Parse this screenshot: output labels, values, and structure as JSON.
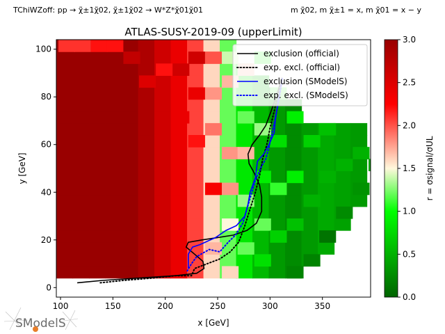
{
  "header": {
    "process_text": "TChiWZoff: pp → χ̃±1χ̃02, χ̃±1χ̃02 → W*Z*χ̃01χ̃01",
    "mass_text": "m χ̃02, m χ̃±1 = x, m χ̃01 = x − y"
  },
  "chart_data": {
    "type": "heatmap",
    "title": "ATLAS-SUSY-2019-09 (upperLimit)",
    "xlabel": "x [GeV]",
    "ylabel": "y [GeV]",
    "xlim": [
      96,
      396
    ],
    "ylim": [
      -4,
      104
    ],
    "xticks": [
      100,
      150,
      200,
      250,
      300,
      350
    ],
    "yticks": [
      0,
      20,
      40,
      60,
      80,
      100
    ],
    "colorbar": {
      "label": "r = σsignal/σUL",
      "range": [
        0.0,
        3.0
      ],
      "ticks": [
        0.0,
        0.5,
        1.0,
        1.5,
        2.0,
        2.5,
        3.0
      ],
      "colors": [
        "#006400",
        "#00ff00",
        "#ffffff",
        "#ff0000",
        "#990000"
      ]
    },
    "grid": {
      "x_min": 96,
      "x_step": 15.6,
      "x_count": 19,
      "y_min": 4,
      "y_step": 5,
      "y_count": 20,
      "columns": [
        {
          "fill": 3.0,
          "min_y": 4,
          "max_y": 104
        },
        {
          "fill": 3.0,
          "min_y": 4,
          "max_y": 104
        },
        {
          "fill": 3.0,
          "min_y": 4,
          "max_y": 104
        },
        {
          "fill": 3.0,
          "min_y": 4,
          "max_y": 104
        },
        {
          "fill": 3.0,
          "min_y": 4,
          "max_y": 104
        },
        {
          "fill": 2.85,
          "min_y": 4,
          "max_y": 104
        },
        {
          "fill": 2.6,
          "min_y": 4,
          "max_y": 104
        },
        {
          "fill": 2.4,
          "min_y": 4,
          "max_y": 104
        },
        {
          "fill": 2.05,
          "min_y": 4,
          "max_y": 104
        },
        {
          "fill": 1.6,
          "min_y": 4,
          "max_y": 104
        },
        {
          "fill": 1.2,
          "min_y": 4,
          "max_y": 104
        },
        {
          "fill": 0.85,
          "min_y": 4,
          "max_y": 94
        },
        {
          "fill": 0.55,
          "min_y": 4,
          "max_y": 89
        },
        {
          "fill": 0.35,
          "min_y": 4,
          "max_y": 84
        },
        {
          "fill": 0.25,
          "min_y": 4,
          "max_y": 79
        },
        {
          "fill": 0.35,
          "min_y": 9,
          "max_y": 69
        },
        {
          "fill": 0.45,
          "min_y": 14,
          "max_y": 69
        },
        {
          "fill": 0.4,
          "min_y": 24,
          "max_y": 69
        },
        {
          "fill": 0.35,
          "min_y": 34,
          "max_y": 69
        }
      ],
      "cells": [
        {
          "x": 98,
          "y": 104,
          "r": 2.1
        },
        {
          "x": 113,
          "y": 104,
          "r": 2.1
        },
        {
          "x": 129,
          "y": 104,
          "r": 2.2
        },
        {
          "x": 144,
          "y": 104,
          "r": 2.2
        },
        {
          "x": 160,
          "y": 99,
          "r": 2.7
        },
        {
          "x": 175,
          "y": 89,
          "r": 2.5
        },
        {
          "x": 191,
          "y": 94,
          "r": 2.2
        },
        {
          "x": 207,
          "y": 94,
          "r": 2.6
        },
        {
          "x": 207,
          "y": 74,
          "r": 2.4
        },
        {
          "x": 222,
          "y": 99,
          "r": 2.6
        },
        {
          "x": 222,
          "y": 84,
          "r": 2.4
        },
        {
          "x": 222,
          "y": 64,
          "r": 2.2
        },
        {
          "x": 238,
          "y": 99,
          "r": 2.0
        },
        {
          "x": 238,
          "y": 84,
          "r": 1.8
        },
        {
          "x": 238,
          "y": 69,
          "r": 1.9
        },
        {
          "x": 238,
          "y": 44,
          "r": 2.3
        },
        {
          "x": 238,
          "y": 19,
          "r": 1.7
        },
        {
          "x": 254,
          "y": 99,
          "r": 1.4
        },
        {
          "x": 254,
          "y": 89,
          "r": 1.7
        },
        {
          "x": 254,
          "y": 59,
          "r": 1.8
        },
        {
          "x": 254,
          "y": 44,
          "r": 1.8
        },
        {
          "x": 254,
          "y": 29,
          "r": 1.5
        },
        {
          "x": 254,
          "y": 9,
          "r": 1.6
        },
        {
          "x": 269,
          "y": 94,
          "r": 1.7
        },
        {
          "x": 269,
          "y": 74,
          "r": 1.2
        },
        {
          "x": 269,
          "y": 59,
          "r": 1.7
        },
        {
          "x": 269,
          "y": 39,
          "r": 1.3
        },
        {
          "x": 269,
          "y": 19,
          "r": 1.2
        },
        {
          "x": 285,
          "y": 99,
          "r": 1.1
        },
        {
          "x": 285,
          "y": 69,
          "r": 1.3
        },
        {
          "x": 285,
          "y": 49,
          "r": 0.9
        },
        {
          "x": 285,
          "y": 29,
          "r": 1.2
        },
        {
          "x": 285,
          "y": 14,
          "r": 0.8
        },
        {
          "x": 300,
          "y": 84,
          "r": 1.2
        },
        {
          "x": 300,
          "y": 64,
          "r": 0.8
        },
        {
          "x": 300,
          "y": 44,
          "r": 1.1
        },
        {
          "x": 300,
          "y": 24,
          "r": 0.7
        },
        {
          "x": 316,
          "y": 74,
          "r": 0.9
        },
        {
          "x": 316,
          "y": 49,
          "r": 0.9
        },
        {
          "x": 316,
          "y": 29,
          "r": 0.6
        },
        {
          "x": 316,
          "y": 9,
          "r": 0.2
        },
        {
          "x": 332,
          "y": 64,
          "r": 0.7
        },
        {
          "x": 332,
          "y": 39,
          "r": 0.5
        },
        {
          "x": 332,
          "y": 14,
          "r": 0.2
        },
        {
          "x": 347,
          "y": 69,
          "r": 0.6
        },
        {
          "x": 347,
          "y": 49,
          "r": 0.5
        },
        {
          "x": 347,
          "y": 24,
          "r": 0.1
        },
        {
          "x": 363,
          "y": 54,
          "r": 0.5
        },
        {
          "x": 363,
          "y": 34,
          "r": 0.25
        },
        {
          "x": 379,
          "y": 59,
          "r": 0.5
        },
        {
          "x": 379,
          "y": 44,
          "r": 0.3
        },
        {
          "x": 394,
          "y": 54,
          "r": 0.45
        }
      ]
    },
    "series": [
      {
        "name": "exclusion (official)",
        "color": "#000000",
        "dash": "solid",
        "points": [
          [
            116,
            2
          ],
          [
            140,
            3
          ],
          [
            175,
            4
          ],
          [
            210,
            5
          ],
          [
            230,
            6
          ],
          [
            237,
            8
          ],
          [
            236,
            11
          ],
          [
            228,
            14
          ],
          [
            220,
            17
          ],
          [
            222,
            19
          ],
          [
            235,
            20
          ],
          [
            250,
            21
          ],
          [
            265,
            22
          ],
          [
            278,
            24
          ],
          [
            287,
            27
          ],
          [
            292,
            32
          ],
          [
            292,
            38
          ],
          [
            290,
            43
          ],
          [
            285,
            48
          ],
          [
            280,
            52
          ],
          [
            279,
            56
          ],
          [
            283,
            60
          ],
          [
            290,
            64
          ],
          [
            296,
            68
          ],
          [
            301,
            74
          ],
          [
            305,
            79
          ],
          [
            308,
            83
          ],
          [
            311,
            88
          ]
        ]
      },
      {
        "name": "exp. excl. (official)",
        "color": "#000000",
        "dash": "dotted",
        "points": [
          [
            138,
            2
          ],
          [
            160,
            3
          ],
          [
            188,
            4
          ],
          [
            210,
            5
          ],
          [
            225,
            5
          ],
          [
            228,
            8
          ],
          [
            240,
            10
          ],
          [
            252,
            12
          ],
          [
            262,
            15
          ],
          [
            270,
            19
          ],
          [
            276,
            26
          ],
          [
            281,
            33
          ],
          [
            286,
            40
          ],
          [
            290,
            47
          ],
          [
            293,
            54
          ],
          [
            297,
            60
          ],
          [
            300,
            67
          ],
          [
            304,
            74
          ],
          [
            307,
            80
          ],
          [
            310,
            86
          ]
        ]
      },
      {
        "name": "exclusion (SModelS)",
        "color": "#0000ff",
        "dash": "solid",
        "points": [
          [
            222,
            8
          ],
          [
            222,
            14
          ],
          [
            226,
            17
          ],
          [
            233,
            18
          ],
          [
            248,
            21
          ],
          [
            258,
            24
          ],
          [
            268,
            26
          ],
          [
            276,
            30
          ],
          [
            279,
            35
          ],
          [
            281,
            40
          ],
          [
            286,
            46
          ],
          [
            288,
            53
          ],
          [
            294,
            56
          ],
          [
            299,
            60
          ],
          [
            304,
            65
          ],
          [
            305,
            70
          ],
          [
            308,
            79
          ],
          [
            312,
            88
          ]
        ]
      },
      {
        "name": "exp. excl. (SModelS)",
        "color": "#0000ff",
        "dash": "dotted",
        "points": [
          [
            221,
            7
          ],
          [
            225,
            10
          ],
          [
            230,
            13
          ],
          [
            242,
            16
          ],
          [
            252,
            15
          ],
          [
            260,
            19
          ],
          [
            267,
            22
          ],
          [
            274,
            27
          ],
          [
            278,
            33
          ],
          [
            282,
            39
          ],
          [
            286,
            45
          ],
          [
            292,
            51
          ],
          [
            296,
            54
          ],
          [
            299,
            59
          ],
          [
            302,
            65
          ],
          [
            305,
            71
          ],
          [
            309,
            80
          ],
          [
            312,
            88
          ]
        ]
      }
    ],
    "legend": {
      "position": "top-right",
      "entries": [
        "exclusion (official)",
        "exp. excl. (official)",
        "exclusion (SModelS)",
        "exp. excl. (SModelS)"
      ]
    }
  },
  "logo": {
    "text": "SModelS"
  }
}
